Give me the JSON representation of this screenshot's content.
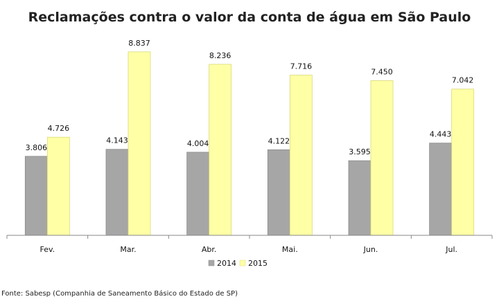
{
  "chart_data": {
    "type": "bar",
    "title": "Reclamações contra o valor da conta de água em São Paulo",
    "categories": [
      "Fev.",
      "Mar.",
      "Abr.",
      "Mai.",
      "Jun.",
      "Jul."
    ],
    "series": [
      {
        "name": "2014",
        "color": "#a6a6a6",
        "values": [
          3806,
          4143,
          4004,
          4122,
          3595,
          4443
        ],
        "labels": [
          "3.806",
          "4.143",
          "4.004",
          "4.122",
          "3.595",
          "4.443"
        ]
      },
      {
        "name": "2015",
        "color": "#ffffa6",
        "values": [
          4726,
          8837,
          8236,
          7716,
          7450,
          7042
        ],
        "labels": [
          "4.726",
          "8.837",
          "8.236",
          "7.716",
          "7.450",
          "7.042"
        ]
      }
    ],
    "ylim": [
      0,
      10000
    ],
    "grid": false,
    "legend": "bottom-center",
    "xlabel": "",
    "ylabel": ""
  },
  "source_note": "Fonte: Sabesp (Companhia de Saneamento Básico do Estado de SP)",
  "colors": {
    "bar_2014_stroke": "#8c8c8c",
    "bar_2015_stroke": "#d9d97a",
    "axis": "#888888"
  }
}
